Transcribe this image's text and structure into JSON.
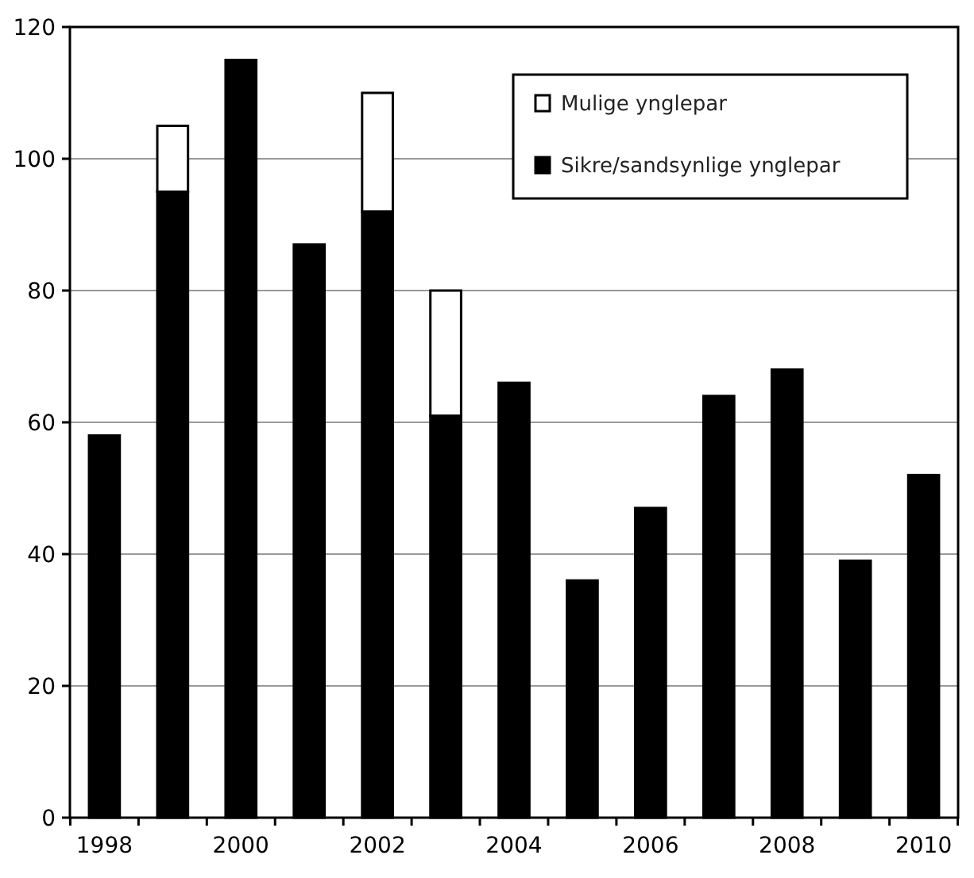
{
  "chart_data": {
    "type": "bar",
    "stacked": true,
    "categories": [
      "1998",
      null,
      "2000",
      null,
      "2002",
      null,
      "2004",
      null,
      "2006",
      null,
      "2008",
      null,
      "2010"
    ],
    "series": [
      {
        "name": "Sikre/sandsynlige ynglepar",
        "color": "#000000",
        "values": [
          58,
          95,
          115,
          87,
          92,
          61,
          66,
          36,
          47,
          64,
          68,
          39,
          52
        ]
      },
      {
        "name": "Mulige ynglepar",
        "color": "#ffffff",
        "values": [
          0,
          10,
          0,
          0,
          18,
          19,
          0,
          0,
          0,
          0,
          0,
          0,
          0
        ]
      }
    ],
    "ylim": [
      0,
      120
    ],
    "yticks": [
      0,
      20,
      40,
      60,
      80,
      100,
      120
    ],
    "grid": "y",
    "legend": "top right"
  }
}
